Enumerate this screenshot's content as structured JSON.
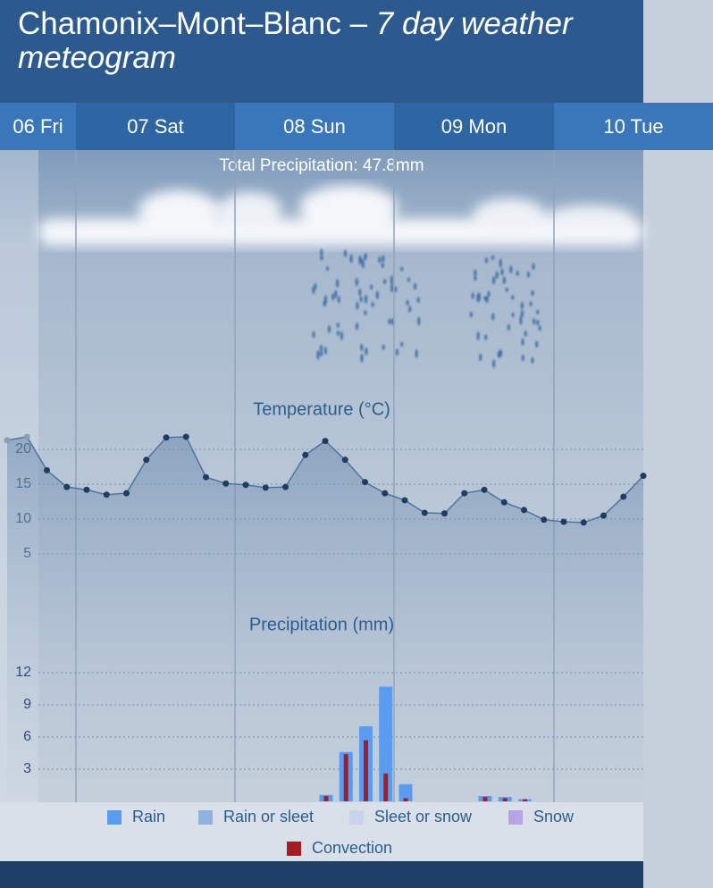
{
  "header": {
    "location": "Chamonix–Mont–Blanc –",
    "subtitle": "7 day weather meteogram"
  },
  "days": [
    "06 Fri",
    "07 Sat",
    "08 Sun",
    "09 Mon",
    "10 Tue"
  ],
  "total_precipitation": "Total Precipitation: 47.8mm",
  "chart_data": [
    {
      "type": "line",
      "title": "Temperature (°C)",
      "color": "#2d5c8f",
      "categories": [
        null,
        null,
        null,
        null,
        null,
        null,
        null,
        null,
        null,
        null,
        null,
        null,
        null,
        null,
        null,
        null,
        null,
        null,
        null,
        null,
        null,
        null,
        null,
        null,
        null,
        null,
        null,
        null,
        null,
        null,
        null,
        null,
        null
      ],
      "values": [
        21.3,
        21.8,
        17,
        14.6,
        14.2,
        13.5,
        13.7,
        18.5,
        21.7,
        21.8,
        16,
        15.1,
        14.9,
        14.5,
        14.6,
        19.2,
        21.2,
        18.5,
        15.3,
        13.7,
        12.7,
        10.9,
        10.8,
        13.7,
        14.2,
        12.4,
        11.3,
        9.9,
        9.6,
        9.5,
        10.5,
        13.2,
        16.2
      ],
      "ylim": [
        0,
        24
      ],
      "yticks": [
        5,
        10,
        15,
        20
      ],
      "grid": true
    },
    {
      "type": "bar",
      "title": "Precipitation (mm)",
      "categories": [
        null,
        null,
        null,
        null,
        null,
        null,
        null,
        null,
        null,
        null,
        null,
        null,
        null,
        null,
        null,
        null,
        null,
        null,
        null,
        null,
        null,
        null,
        null,
        null,
        null,
        null,
        null,
        null,
        null,
        null,
        null,
        null,
        null
      ],
      "series": [
        {
          "name": "Rain",
          "color": "#5b9bf0",
          "values": [
            0,
            0,
            0,
            0,
            0,
            0,
            0,
            0,
            0,
            0,
            0,
            0,
            0,
            0,
            0,
            0,
            0.6,
            4.6,
            7,
            10.7,
            1.6,
            0,
            0,
            0,
            0.5,
            0.4,
            0.2,
            0,
            0,
            0,
            0,
            0,
            0
          ]
        },
        {
          "name": "Convection",
          "color": "#a31d24",
          "values": [
            0,
            0,
            0,
            0,
            0,
            0,
            0,
            0,
            0,
            0,
            0,
            0,
            0,
            0,
            0,
            0,
            0.5,
            4.4,
            5.7,
            2.6,
            0.3,
            0,
            0,
            0,
            0.4,
            0.3,
            0.2,
            0,
            0,
            0,
            0,
            0,
            0
          ]
        }
      ],
      "legend_items": [
        {
          "name": "Rain",
          "color": "#5b9bf0"
        },
        {
          "name": "Rain or sleet",
          "color": "#90b2de"
        },
        {
          "name": "Sleet or snow",
          "color": "#cad4e8"
        },
        {
          "name": "Snow",
          "color": "#b7a3e6"
        },
        {
          "name": "Convection",
          "color": "#a31d24"
        }
      ],
      "ylim": [
        0,
        13
      ],
      "yticks": [
        3,
        6,
        9,
        12
      ],
      "grid": true
    }
  ]
}
